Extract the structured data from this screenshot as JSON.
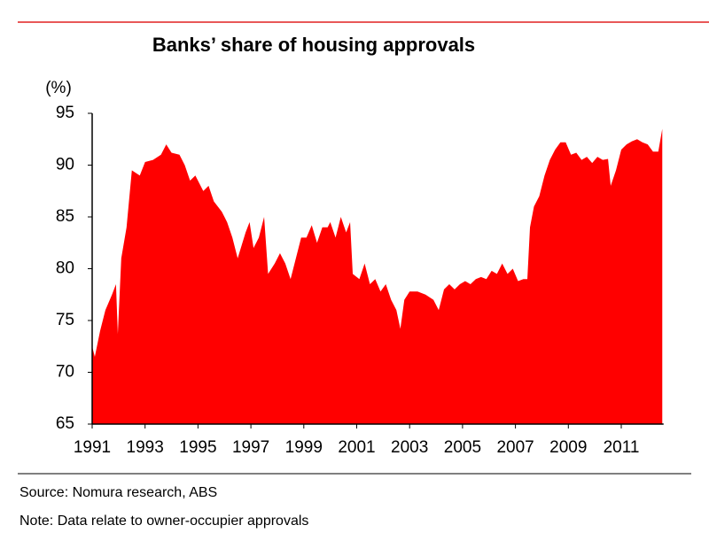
{
  "chart_data": {
    "type": "area",
    "title": "Banks’ share of housing approvals",
    "y_label": "(%)",
    "source": "Source: Nomura research, ABS",
    "note": "Note: Data relate to owner-occupier approvals",
    "color": "#ff0000",
    "x": [
      1991.0,
      1991.1,
      1991.3,
      1991.5,
      1991.75,
      1991.9,
      1991.97,
      1992.1,
      1992.3,
      1992.5,
      1992.8,
      1993.0,
      1993.3,
      1993.6,
      1993.8,
      1994.0,
      1994.3,
      1994.5,
      1994.7,
      1994.9,
      1995.2,
      1995.4,
      1995.6,
      1995.9,
      1996.1,
      1996.3,
      1996.5,
      1996.8,
      1996.95,
      1997.1,
      1997.3,
      1997.5,
      1997.65,
      1997.9,
      1998.1,
      1998.3,
      1998.5,
      1998.7,
      1998.9,
      1999.1,
      1999.3,
      1999.5,
      1999.7,
      1999.9,
      2000.0,
      2000.2,
      2000.4,
      2000.6,
      2000.75,
      2000.85,
      2001.1,
      2001.3,
      2001.5,
      2001.7,
      2001.9,
      2002.1,
      2002.3,
      2002.5,
      2002.65,
      2002.8,
      2003.0,
      2003.3,
      2003.6,
      2003.9,
      2004.1,
      2004.3,
      2004.5,
      2004.7,
      2004.9,
      2005.1,
      2005.3,
      2005.5,
      2005.7,
      2005.9,
      2006.1,
      2006.3,
      2006.5,
      2006.7,
      2006.9,
      2007.1,
      2007.3,
      2007.45,
      2007.55,
      2007.7,
      2007.9,
      2008.1,
      2008.3,
      2008.5,
      2008.7,
      2008.9,
      2009.1,
      2009.3,
      2009.5,
      2009.7,
      2009.9,
      2010.1,
      2010.3,
      2010.5,
      2010.6,
      2010.8,
      2011.0,
      2011.2,
      2011.4,
      2011.6,
      2011.8,
      2012.0,
      2012.2,
      2012.4,
      2012.55
    ],
    "values": [
      72.5,
      71.5,
      74,
      76,
      77.5,
      78.5,
      73.7,
      81,
      84,
      89.5,
      89,
      90.3,
      90.5,
      91,
      92,
      91.2,
      91,
      90,
      88.5,
      89,
      87.5,
      88,
      86.5,
      85.5,
      84.5,
      83,
      81,
      83.5,
      84.5,
      82,
      83,
      85,
      79.5,
      80.5,
      81.5,
      80.5,
      79,
      81,
      83,
      83,
      84.2,
      82.5,
      84,
      84,
      84.5,
      83,
      85,
      83.5,
      84.5,
      79.5,
      79,
      80.5,
      78.5,
      79,
      77.8,
      78.5,
      77,
      76,
      74.2,
      77,
      77.8,
      77.8,
      77.5,
      77,
      76,
      78,
      78.5,
      78,
      78.5,
      78.8,
      78.5,
      79,
      79.2,
      79,
      79.8,
      79.5,
      80.5,
      79.5,
      80,
      78.8,
      79,
      79,
      84,
      86,
      87,
      89,
      90.5,
      91.5,
      92.2,
      92.2,
      91,
      91.2,
      90.5,
      90.8,
      90.2,
      90.8,
      90.5,
      90.6,
      88,
      89.5,
      91.5,
      92,
      92.3,
      92.5,
      92.2,
      92,
      91.3,
      91.3,
      93.5
    ],
    "xlim": [
      1991,
      2012.6
    ],
    "xticks": [
      1991,
      1993,
      1995,
      1997,
      1999,
      2001,
      2003,
      2005,
      2007,
      2009,
      2011
    ],
    "ylim": [
      65,
      95
    ],
    "yticks": [
      65,
      70,
      75,
      80,
      85,
      90,
      95
    ]
  }
}
